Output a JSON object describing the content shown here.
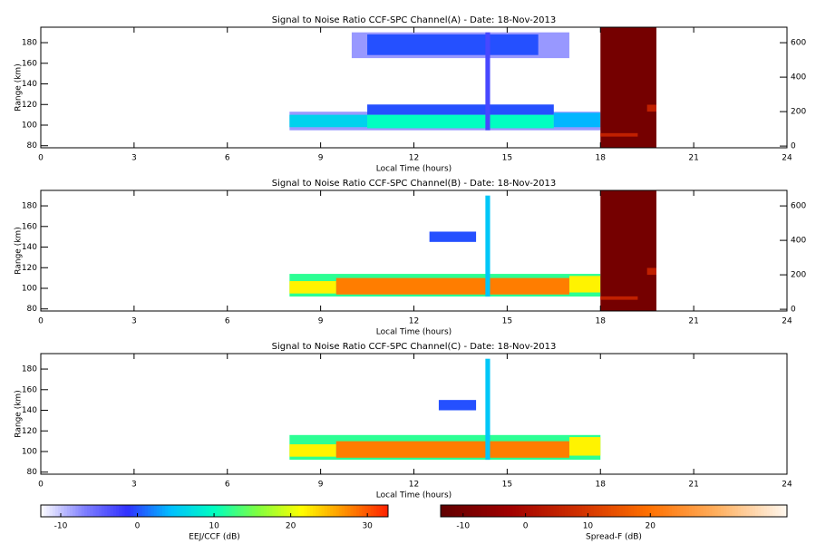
{
  "chart_data": [
    {
      "type": "heatmap",
      "title": "Signal to Noise Ratio CCF-SPC Channel(A) - Date: 18-Nov-2013",
      "xlabel": "Local Time (hours)",
      "ylabel": "Range (km)",
      "xlim": [
        0,
        24
      ],
      "xticks": [
        0,
        3,
        6,
        9,
        12,
        15,
        18,
        21,
        24
      ],
      "ylim": [
        78,
        195
      ],
      "yticks": [
        80,
        100,
        120,
        140,
        160,
        180
      ],
      "y2lim": [
        -10,
        690
      ],
      "y2ticks": [
        0,
        200,
        400,
        600
      ],
      "cells": [
        {
          "x": [
            8,
            18
          ],
          "y": [
            95,
            113
          ],
          "value": -8
        },
        {
          "x": [
            8,
            10.5
          ],
          "y": [
            98,
            110
          ],
          "value": 6
        },
        {
          "x": [
            10.5,
            16.5
          ],
          "y": [
            110,
            120
          ],
          "value": 0
        },
        {
          "x": [
            10.5,
            16.5
          ],
          "y": [
            97,
            110
          ],
          "value": 10
        },
        {
          "x": [
            16.5,
            18
          ],
          "y": [
            98,
            112
          ],
          "value": 4
        },
        {
          "x": [
            10,
            17
          ],
          "y": [
            165,
            190
          ],
          "value": -8
        },
        {
          "x": [
            10.5,
            16
          ],
          "y": [
            168,
            188
          ],
          "value": 0
        },
        {
          "x": [
            14.3,
            14.45
          ],
          "y": [
            95,
            190
          ],
          "value": -3
        }
      ],
      "spread_f_cells": [
        {
          "x": [
            18,
            19.8
          ],
          "y": [
            -10,
            690
          ],
          "value": -10
        },
        {
          "x": [
            18,
            19.2
          ],
          "y": [
            55,
            75
          ],
          "value": 5
        },
        {
          "x": [
            19.5,
            19.8
          ],
          "y": [
            200,
            240
          ],
          "value": 5
        }
      ]
    },
    {
      "type": "heatmap",
      "title": "Signal to Noise Ratio CCF-SPC Channel(B) - Date: 18-Nov-2013",
      "xlabel": "Local Time (hours)",
      "ylabel": "Range (km)",
      "xlim": [
        0,
        24
      ],
      "xticks": [
        0,
        3,
        6,
        9,
        12,
        15,
        18,
        21,
        24
      ],
      "ylim": [
        78,
        195
      ],
      "yticks": [
        80,
        100,
        120,
        140,
        160,
        180
      ],
      "y2lim": [
        -10,
        690
      ],
      "y2ticks": [
        0,
        200,
        400,
        600
      ],
      "cells": [
        {
          "x": [
            8,
            18
          ],
          "y": [
            92,
            114
          ],
          "value": 12
        },
        {
          "x": [
            8,
            9.5
          ],
          "y": [
            95,
            107
          ],
          "value": 22
        },
        {
          "x": [
            9.5,
            17
          ],
          "y": [
            94,
            110
          ],
          "value": 28
        },
        {
          "x": [
            17,
            18
          ],
          "y": [
            96,
            112
          ],
          "value": 22
        },
        {
          "x": [
            12.5,
            14
          ],
          "y": [
            145,
            155
          ],
          "value": 0
        },
        {
          "x": [
            14.3,
            14.45
          ],
          "y": [
            92,
            190
          ],
          "value": 5
        }
      ],
      "spread_f_cells": [
        {
          "x": [
            18,
            19.8
          ],
          "y": [
            -10,
            690
          ],
          "value": -10
        },
        {
          "x": [
            18,
            19.2
          ],
          "y": [
            55,
            75
          ],
          "value": 5
        },
        {
          "x": [
            19.5,
            19.8
          ],
          "y": [
            200,
            240
          ],
          "value": 5
        }
      ]
    },
    {
      "type": "heatmap",
      "title": "Signal to Noise Ratio CCF-SPC Channel(C) - Date: 18-Nov-2013",
      "xlabel": "Local Time (hours)",
      "ylabel": "Range (km)",
      "xlim": [
        0,
        24
      ],
      "xticks": [
        0,
        3,
        6,
        9,
        12,
        15,
        18,
        21,
        24
      ],
      "ylim": [
        78,
        195
      ],
      "yticks": [
        80,
        100,
        120,
        140,
        160,
        180
      ],
      "cells": [
        {
          "x": [
            8,
            18
          ],
          "y": [
            92,
            116
          ],
          "value": 12
        },
        {
          "x": [
            8,
            9.5
          ],
          "y": [
            95,
            107
          ],
          "value": 22
        },
        {
          "x": [
            9.5,
            17
          ],
          "y": [
            94,
            110
          ],
          "value": 28
        },
        {
          "x": [
            17,
            18
          ],
          "y": [
            96,
            114
          ],
          "value": 22
        },
        {
          "x": [
            12.8,
            14
          ],
          "y": [
            140,
            150
          ],
          "value": 0
        },
        {
          "x": [
            14.3,
            14.45
          ],
          "y": [
            92,
            190
          ],
          "value": 5
        }
      ]
    },
    {
      "type": "colorbar",
      "label": "EEJ/CCF (dB)",
      "lim": [
        -12.6,
        32.7
      ],
      "ticks": [
        -10,
        0,
        10,
        20,
        30
      ],
      "colors": [
        "#ffffff",
        "#8080ff",
        "#3030ff",
        "#00c0ff",
        "#00ffc0",
        "#80ff40",
        "#ffff00",
        "#ff9000",
        "#ff2000"
      ]
    },
    {
      "type": "colorbar",
      "label": "Spread-F (dB)",
      "lim": [
        -13.6,
        41.9
      ],
      "ticks": [
        -10,
        0,
        10,
        20
      ],
      "colors": [
        "#600000",
        "#a00000",
        "#d03000",
        "#ff7000",
        "#ffb060",
        "#fff8f0"
      ]
    }
  ]
}
